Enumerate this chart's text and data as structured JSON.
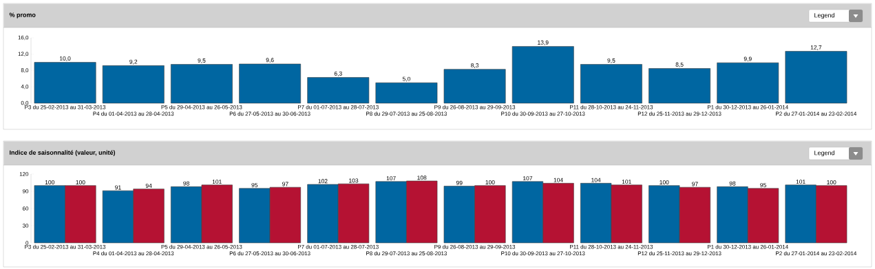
{
  "chart_data": [
    {
      "type": "bar",
      "title": "% promo",
      "annotations": [
        "Legend"
      ],
      "categories": [
        "P3 du 25-02-2013 au 31-03-2013",
        "P4 du 01-04-2013 au 28-04-2013",
        "P5 du 29-04-2013 au 26-05-2013",
        "P6 du 27-05-2013 au 30-06-2013",
        "P7 du 01-07-2013 au 28-07-2013",
        "P8 du 29-07-2013 au 25-08-2013",
        "P9 du 26-08-2013 au 29-09-2013",
        "P10 du 30-09-2013 au 27-10-2013",
        "P11 du 28-10-2013 au 24-11-2013",
        "P12 du 25-11-2013 au 29-12-2013",
        "P1 du 30-12-2013 au 26-01-2014",
        "P2 du 27-01-2014 au 23-02-2014"
      ],
      "values": [
        10.0,
        9.2,
        9.5,
        9.6,
        6.3,
        5.0,
        8.3,
        13.9,
        9.5,
        8.5,
        9.9,
        12.7
      ],
      "value_labels": [
        "10,0",
        "9,2",
        "9,5",
        "9,6",
        "6,3",
        "5,0",
        "8,3",
        "13,9",
        "9,5",
        "8,5",
        "9,9",
        "12,7"
      ],
      "color": "#0066a1",
      "ylim": [
        0,
        16
      ],
      "yticks": [
        {
          "value": 0,
          "label": "0,0"
        },
        {
          "value": 4,
          "label": "4,0"
        },
        {
          "value": 8,
          "label": "8,0"
        },
        {
          "value": 12,
          "label": "12,0"
        },
        {
          "value": 16,
          "label": "16,0"
        }
      ]
    },
    {
      "type": "bar",
      "title": "Indice de saisonnalité (valeur, unité)",
      "annotations": [
        "Legend"
      ],
      "categories": [
        "P3 du 25-02-2013 au 31-03-2013",
        "P4 du 01-04-2013 au 28-04-2013",
        "P5 du 29-04-2013 au 26-05-2013",
        "P6 du 27-05-2013 au 30-06-2013",
        "P7 du 01-07-2013 au 28-07-2013",
        "P8 du 29-07-2013 au 25-08-2013",
        "P9 du 26-08-2013 au 29-09-2013",
        "P10 du 30-09-2013 au 27-10-2013",
        "P11 du 28-10-2013 au 24-11-2013",
        "P12 du 25-11-2013 au 29-12-2013",
        "P1 du 30-12-2013 au 26-01-2014",
        "P2 du 27-01-2014 au 23-02-2014"
      ],
      "series": [
        {
          "color": "#0066a1",
          "values": [
            100,
            91,
            98,
            95,
            102,
            107,
            99,
            107,
            104,
            100,
            98,
            101
          ]
        },
        {
          "color": "#b51233",
          "values": [
            100,
            94,
            101,
            97,
            103,
            108,
            100,
            104,
            101,
            97,
            95,
            100
          ]
        }
      ],
      "data_labels": true,
      "ylim": [
        0,
        120
      ],
      "yticks": [
        0,
        30,
        60,
        90,
        120
      ]
    }
  ]
}
